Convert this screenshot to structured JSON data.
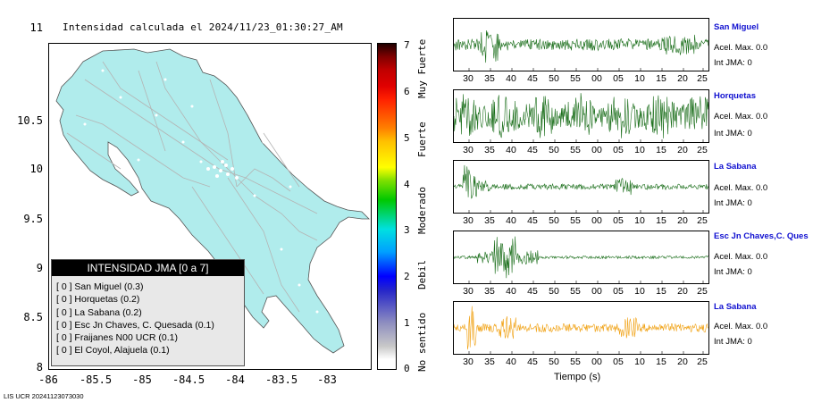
{
  "map": {
    "title": "Intensidad calculada el 2024/11/23_01:30:27_AM",
    "y_ticks": [
      "11",
      "10.5",
      "10",
      "9.5",
      "9",
      "8.5",
      "8"
    ],
    "x_ticks": [
      "-86",
      "-85.5",
      "-85",
      "-84.5",
      "-84",
      "-83.5",
      "-83"
    ],
    "land_color": "#b0ecec",
    "road_color": "#b4b4b4"
  },
  "legend": {
    "header": "INTENSIDAD JMA [0 a 7]",
    "items": [
      "[ 0 ]  San Miguel (0.3)",
      "[ 0 ]  Horquetas (0.2)",
      "[ 0 ]  La Sabana (0.2)",
      "[ 0 ]  Esc Jn Chaves, C. Quesada (0.1)",
      "[ 0 ]  Fraijanes N00 UCR (0.1)",
      "[ 0 ]  El Coyol, Alajuela (0.1)"
    ]
  },
  "colorbar": {
    "numbers": [
      "7",
      "6",
      "5",
      "4",
      "3",
      "2",
      "1",
      "0"
    ],
    "labels": [
      "Muy Fuerte",
      "Fuerte",
      "Moderado",
      "Debil",
      "No sentido"
    ]
  },
  "stations": [
    {
      "name": "San Miguel",
      "acc": "Acel. Max. 0.0",
      "jma": "Int JMA: 0",
      "color": "#1a6e1a"
    },
    {
      "name": "Horquetas",
      "acc": "Acel. Max. 0.0",
      "jma": "Int JMA: 0",
      "color": "#1a6e1a"
    },
    {
      "name": "La Sabana",
      "acc": "Acel. Max. 0.0",
      "jma": "Int JMA: 0",
      "color": "#1a6e1a"
    },
    {
      "name": "Esc Jn Chaves,C. Ques",
      "acc": "Acel. Max. 0.0",
      "jma": "Int JMA: 0",
      "color": "#1a6e1a"
    },
    {
      "name": "La Sabana",
      "acc": "Acel. Max. 0.0",
      "jma": "Int JMA: 0",
      "color": "#f0a010"
    }
  ],
  "time_ticks": [
    "30",
    "35",
    "40",
    "45",
    "50",
    "55",
    "00",
    "05",
    "10",
    "15",
    "20",
    "25"
  ],
  "time_axis_label": "Tiempo (s)",
  "footer": "LIS UCR 20241123073030"
}
